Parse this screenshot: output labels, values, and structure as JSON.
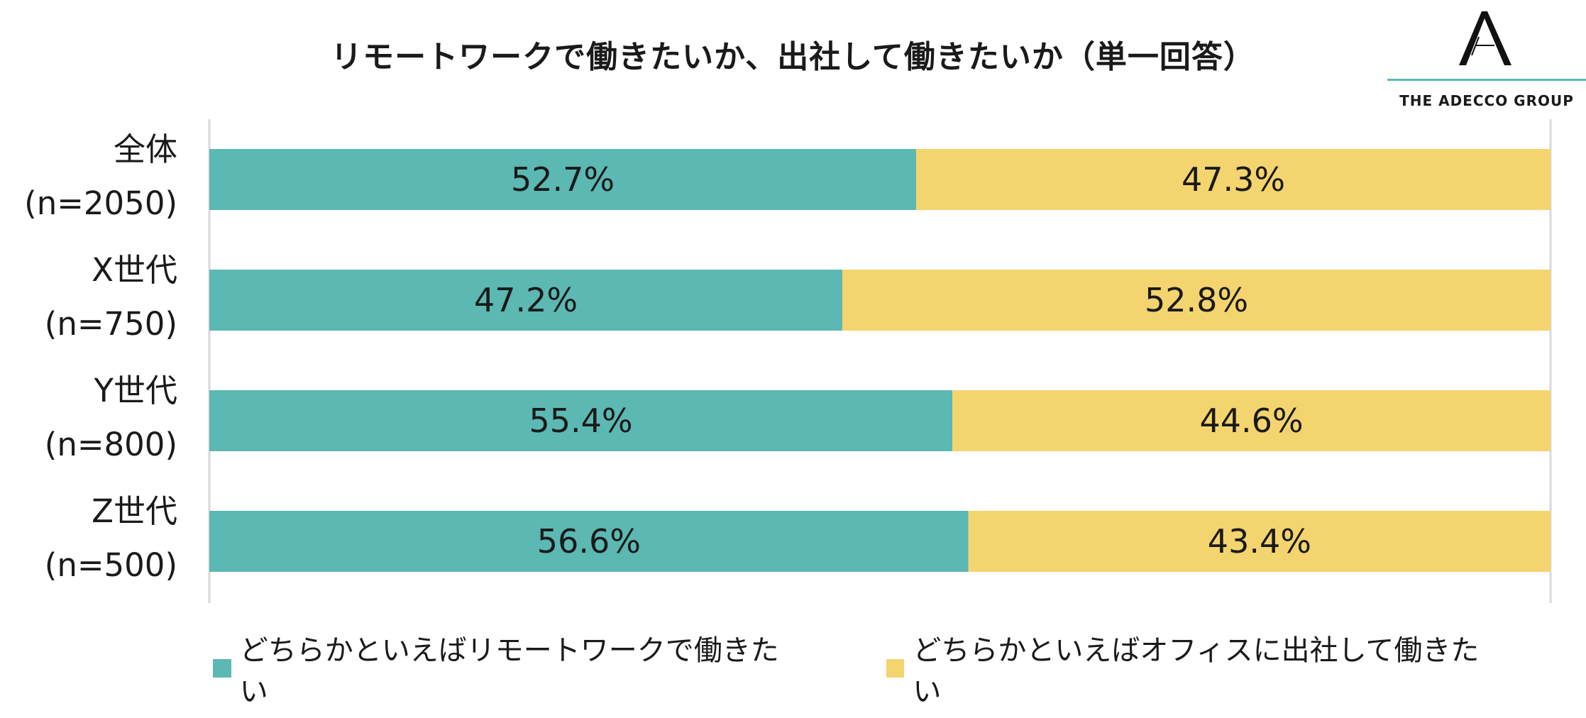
{
  "chart_data": {
    "type": "bar",
    "orientation": "horizontal",
    "stacked": true,
    "percent": true,
    "title": "リモートワークで働きたいか、出社して働きたいか（単一回答）",
    "categories": [
      {
        "name": "全体",
        "n": "(n=2050)"
      },
      {
        "name": "X世代",
        "n": "(n=750)"
      },
      {
        "name": "Y世代",
        "n": "(n=800)"
      },
      {
        "name": "Z世代",
        "n": "(n=500)"
      }
    ],
    "series": [
      {
        "name": "どちらかといえばリモートワークで働きたい",
        "color": "#5cb8b2",
        "values": [
          52.7,
          47.2,
          55.4,
          56.6
        ],
        "labels": [
          "52.7%",
          "47.2%",
          "55.4%",
          "56.6%"
        ]
      },
      {
        "name": "どちらかといえばオフィスに出社して働きたい",
        "color": "#f4d46e",
        "values": [
          47.3,
          52.8,
          44.6,
          43.4
        ],
        "labels": [
          "47.3%",
          "52.8%",
          "44.6%",
          "43.4%"
        ]
      }
    ],
    "xlim": [
      0,
      100
    ],
    "grid": false,
    "legend_position": "bottom"
  },
  "logo": {
    "text": "THE ADECCO GROUP",
    "icon": "adecco-a-logo-icon"
  }
}
